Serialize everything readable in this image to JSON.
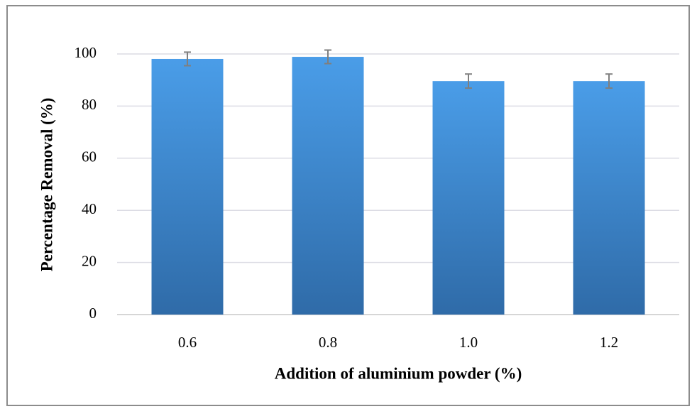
{
  "chart_data": {
    "type": "bar",
    "xlabel": "Addition of aluminium powder (%)",
    "ylabel": "Percentage Removal (%)",
    "categories": [
      "0.6",
      "0.8",
      "1.0",
      "1.2"
    ],
    "values": [
      98.1,
      98.9,
      89.6,
      89.6
    ],
    "errors": [
      2.6,
      2.6,
      2.7,
      2.7
    ],
    "color": "#4a9de8",
    "ylim": [
      0,
      100
    ],
    "yticks": [
      0,
      20,
      40,
      60,
      80,
      100
    ],
    "grid": true
  }
}
